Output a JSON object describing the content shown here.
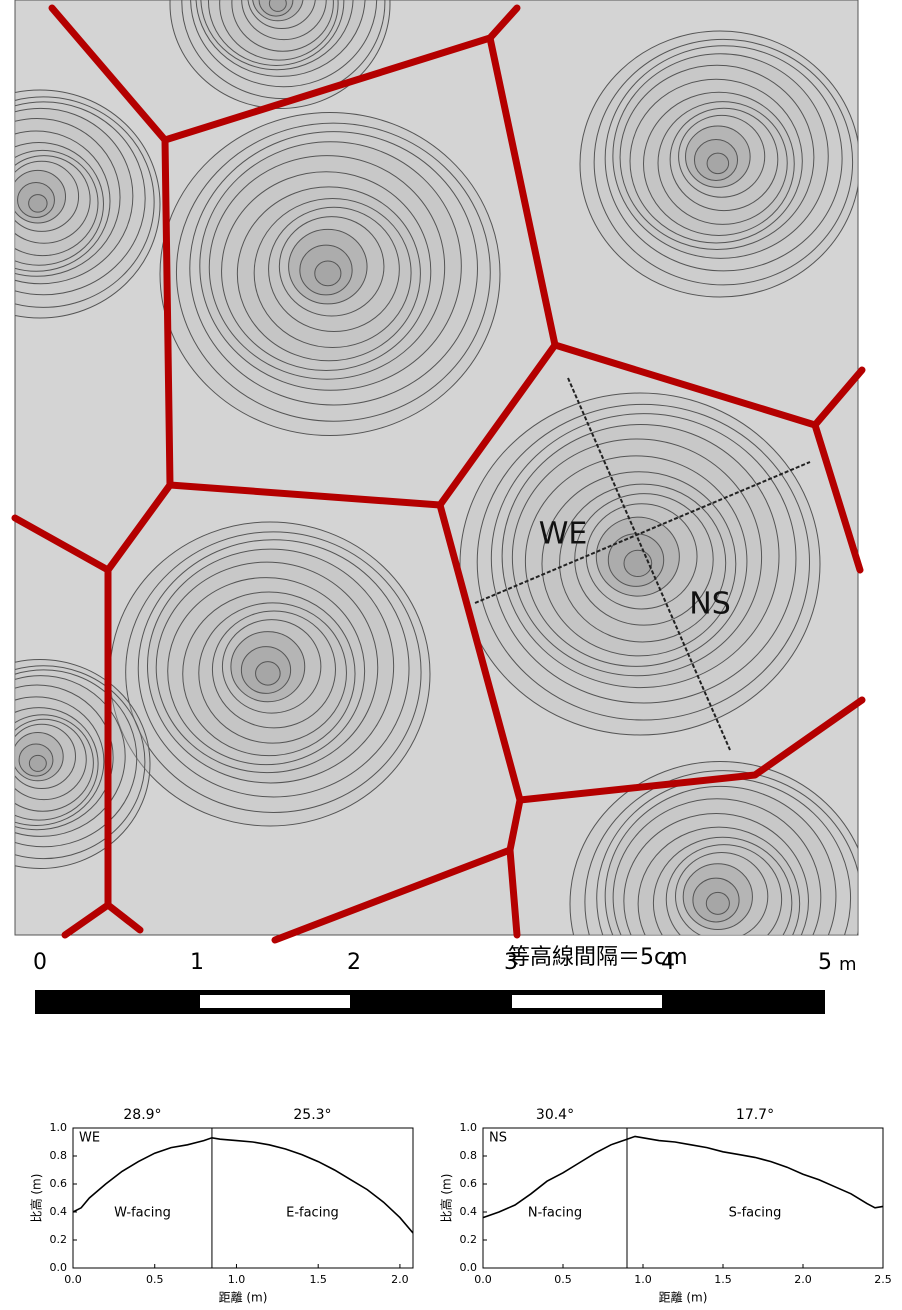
{
  "map": {
    "profile_we": "WE",
    "profile_ns": "NS",
    "contour_note": "等高線間隔＝5cm"
  },
  "scale_bar": {
    "ticks": [
      0,
      1,
      2,
      3,
      4,
      5
    ],
    "unit": "m"
  },
  "chart_data": [
    {
      "type": "line",
      "xlabel": "距離 (m)",
      "ylabel": "比高 (m)",
      "annotations": {
        "left_angle": "28.9°",
        "right_angle": "25.3°",
        "profile": "WE",
        "left_side": "W-facing",
        "right_side": "E-facing"
      },
      "divider_x": 0.85,
      "xlim": [
        0,
        2.08
      ],
      "ylim": [
        0,
        1
      ],
      "xticks": [
        {
          "value": 0,
          "label": "0.0"
        },
        {
          "value": 0.5,
          "label": "0.5"
        },
        {
          "value": 1,
          "label": "1.0"
        },
        {
          "value": 1.5,
          "label": "1.5"
        },
        {
          "value": 2,
          "label": "2.0"
        }
      ],
      "yticks": [
        {
          "value": 0,
          "label": "0.0"
        },
        {
          "value": 0.2,
          "label": "0.2"
        },
        {
          "value": 0.4,
          "label": "0.4"
        },
        {
          "value": 0.6,
          "label": "0.6"
        },
        {
          "value": 0.8,
          "label": "0.8"
        },
        {
          "value": 1,
          "label": "1.0"
        }
      ],
      "x": [
        0,
        0.05,
        0.1,
        0.2,
        0.3,
        0.4,
        0.5,
        0.6,
        0.7,
        0.8,
        0.85,
        0.9,
        1.0,
        1.1,
        1.2,
        1.3,
        1.4,
        1.5,
        1.6,
        1.7,
        1.8,
        1.9,
        2.0,
        2.08
      ],
      "series": [
        {
          "color": "#000000",
          "values": [
            0.4,
            0.43,
            0.5,
            0.6,
            0.69,
            0.76,
            0.82,
            0.86,
            0.88,
            0.91,
            0.93,
            0.92,
            0.91,
            0.9,
            0.88,
            0.85,
            0.81,
            0.76,
            0.7,
            0.63,
            0.56,
            0.47,
            0.36,
            0.25
          ]
        }
      ]
    },
    {
      "type": "line",
      "xlabel": "距離 (m)",
      "ylabel": "比高 (m)",
      "annotations": {
        "left_angle": "30.4°",
        "right_angle": "17.7°",
        "profile": "NS",
        "left_side": "N-facing",
        "right_side": "S-facing"
      },
      "divider_x": 0.9,
      "xlim": [
        0,
        2.5
      ],
      "ylim": [
        0,
        1
      ],
      "xticks": [
        {
          "value": 0,
          "label": "0.0"
        },
        {
          "value": 0.5,
          "label": "0.5"
        },
        {
          "value": 1,
          "label": "1.0"
        },
        {
          "value": 1.5,
          "label": "1.5"
        },
        {
          "value": 2,
          "label": "2.0"
        },
        {
          "value": 2.5,
          "label": "2.5"
        }
      ],
      "yticks": [
        {
          "value": 0,
          "label": "0.0"
        },
        {
          "value": 0.2,
          "label": "0.2"
        },
        {
          "value": 0.4,
          "label": "0.4"
        },
        {
          "value": 0.6,
          "label": "0.6"
        },
        {
          "value": 0.8,
          "label": "0.8"
        },
        {
          "value": 1,
          "label": "1.0"
        }
      ],
      "x": [
        0,
        0.1,
        0.2,
        0.3,
        0.4,
        0.5,
        0.6,
        0.7,
        0.8,
        0.9,
        0.95,
        1.0,
        1.1,
        1.2,
        1.3,
        1.4,
        1.5,
        1.6,
        1.7,
        1.8,
        1.9,
        2.0,
        2.1,
        2.2,
        2.3,
        2.4,
        2.45,
        2.5
      ],
      "series": [
        {
          "color": "#000000",
          "values": [
            0.36,
            0.4,
            0.45,
            0.53,
            0.62,
            0.68,
            0.75,
            0.82,
            0.88,
            0.92,
            0.94,
            0.93,
            0.91,
            0.9,
            0.88,
            0.86,
            0.83,
            0.81,
            0.79,
            0.76,
            0.72,
            0.67,
            0.63,
            0.58,
            0.53,
            0.46,
            0.43,
            0.44
          ]
        }
      ]
    }
  ]
}
